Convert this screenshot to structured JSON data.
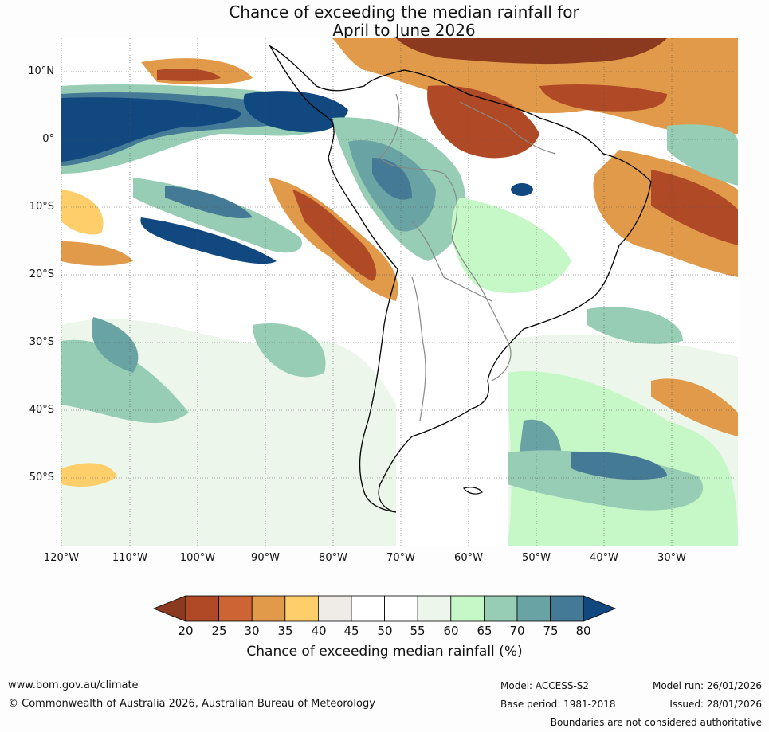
{
  "title_line1": "Chance of exceeding the median rainfall for",
  "title_line2": "April to June 2026",
  "map": {
    "lat_labels": [
      "10°N",
      "0°",
      "10°S",
      "20°S",
      "30°S",
      "40°S",
      "50°S"
    ],
    "lon_labels": [
      "120°W",
      "110°W",
      "100°W",
      "90°W",
      "80°W",
      "70°W",
      "60°W",
      "50°W",
      "40°W",
      "30°W"
    ]
  },
  "colorbar": {
    "ticks": [
      "20",
      "25",
      "30",
      "35",
      "40",
      "45",
      "50",
      "55",
      "60",
      "65",
      "70",
      "75",
      "80"
    ],
    "colors": [
      "#8b3a20",
      "#b04a26",
      "#cc6533",
      "#e09a4a",
      "#fdce6a",
      "#efebe7",
      "#ffffff",
      "#ffffff",
      "#ecf6ea",
      "#c6f7c6",
      "#96cdb4",
      "#6aa3a3",
      "#457a97",
      "#10487f"
    ],
    "title": "Chance of exceeding median rainfall (%)"
  },
  "footer": {
    "url": "www.bom.gov.au/climate",
    "copyright": "© Commonwealth of Australia 2026, Australian Bureau of Meteorology",
    "model": "Model: ACCESS-S2",
    "base_period": "Base period: 1981-2018",
    "model_run": "Model run: 26/01/2026",
    "issued": "Issued: 28/01/2026",
    "disclaimer": "Boundaries are not considered authoritative"
  }
}
